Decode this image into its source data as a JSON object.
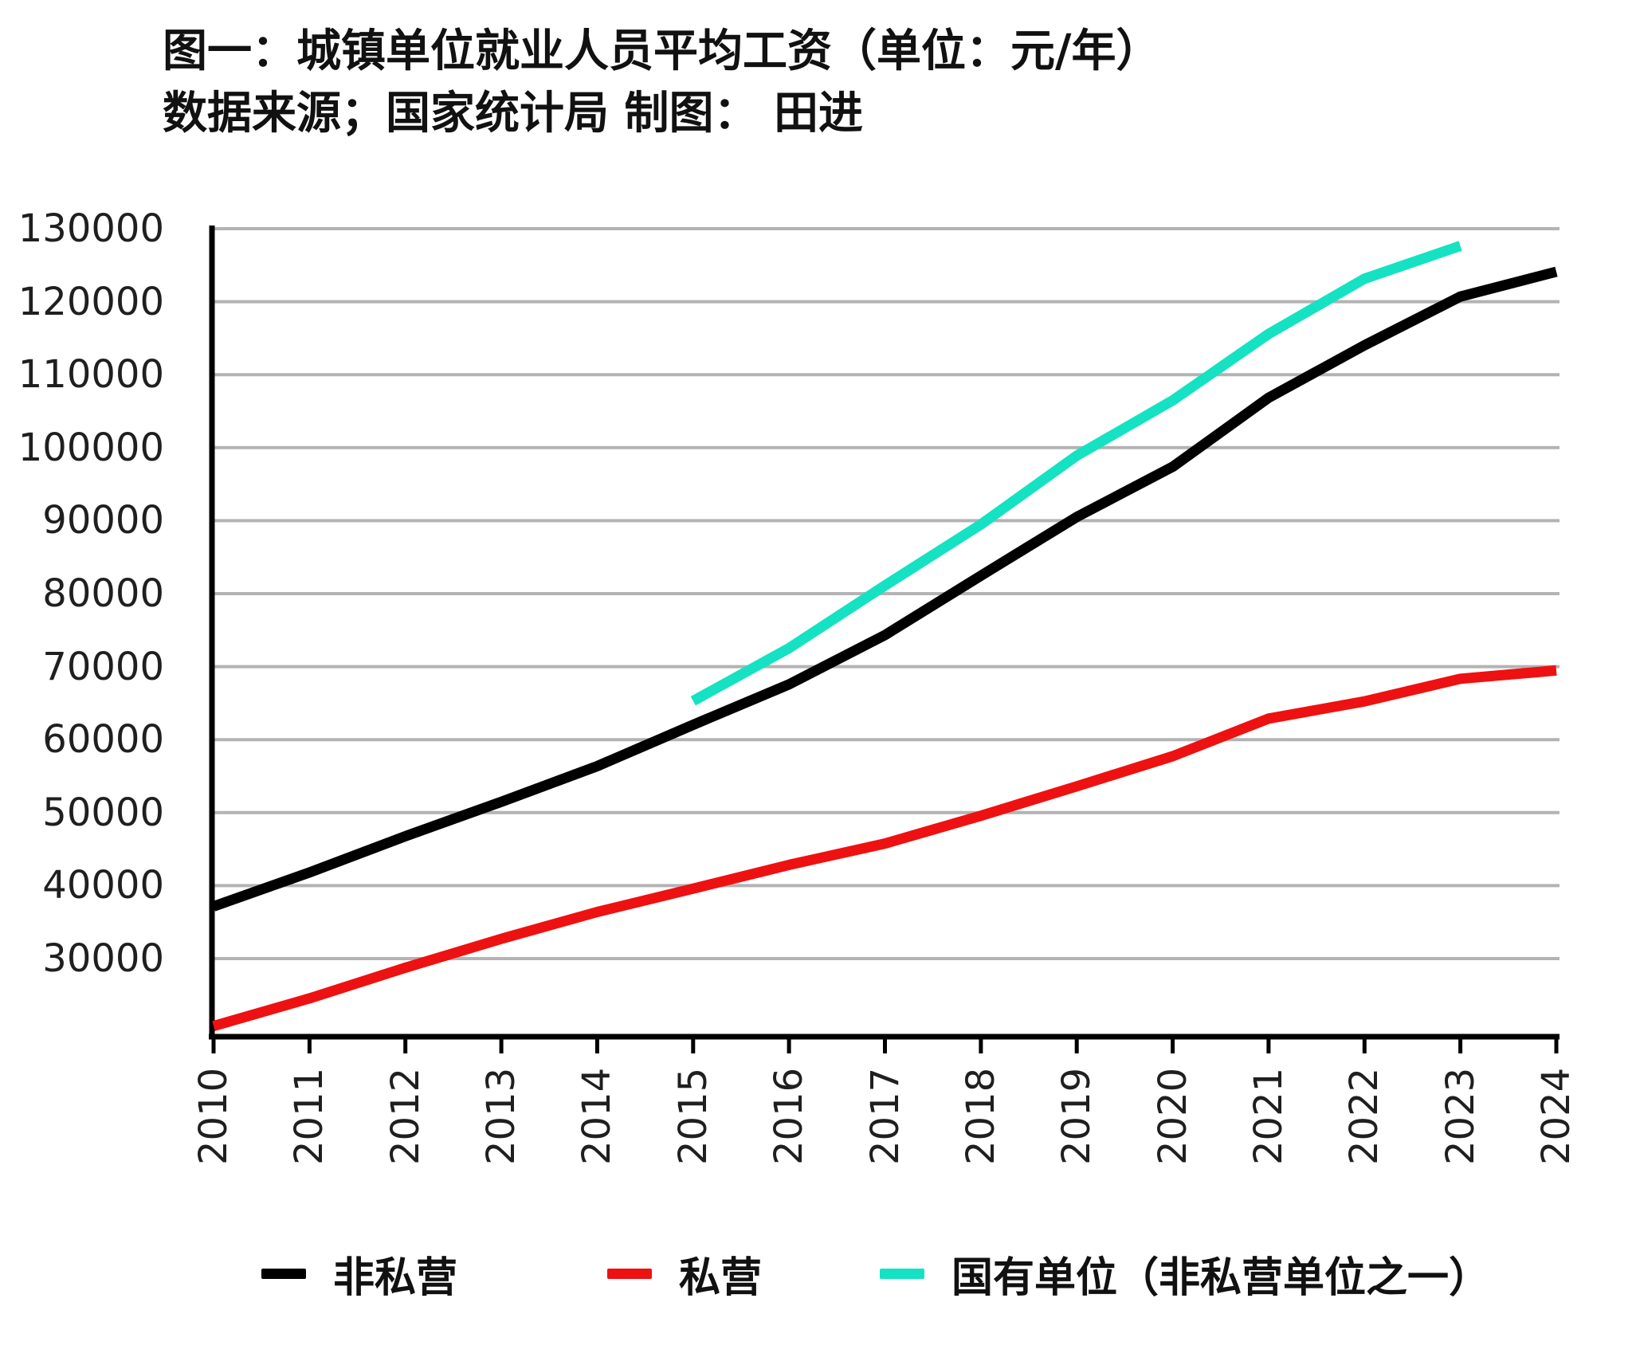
{
  "header": {
    "title_line1": "图一：城镇单位就业人员平均工资（单位：元/年）",
    "title_line2": "数据来源；国家统计局 制图： 田进"
  },
  "chart_data": {
    "type": "line",
    "title": "图一：城镇单位就业人员平均工资（单位：元/年）",
    "source_note": "数据来源；国家统计局 制图： 田进",
    "x": [
      2010,
      2011,
      2012,
      2013,
      2014,
      2015,
      2016,
      2017,
      2018,
      2019,
      2020,
      2021,
      2022,
      2023,
      2024
    ],
    "xlabel": "",
    "ylabel": "",
    "ylim": [
      19300,
      130000
    ],
    "yticks": [
      30000,
      40000,
      50000,
      60000,
      70000,
      80000,
      90000,
      100000,
      110000,
      120000,
      130000
    ],
    "grid": "horizontal",
    "grid_color": "#b3b3b3",
    "axis_color": "#000000",
    "legend_position": "bottom",
    "series": [
      {
        "name": "非私营",
        "color": "#000000",
        "start_year": 2010,
        "values": [
          37147,
          41799,
          46769,
          51483,
          56360,
          62029,
          67569,
          74318,
          82461,
          90501,
          97379,
          106837,
          114029,
          120698,
          124110
        ]
      },
      {
        "name": "私营",
        "color": "#ee1111",
        "start_year": 2010,
        "values": [
          20759,
          24556,
          28752,
          32706,
          36390,
          39589,
          42833,
          45761,
          49575,
          53604,
          57727,
          62884,
          65237,
          68340,
          69476
        ]
      },
      {
        "name": "国有单位（非私营单位之一）",
        "color": "#15e2c2",
        "start_year": 2015,
        "values": [
          65296,
          72538,
          81114,
          89474,
          98899,
          106474,
          115583,
          123142,
          127657
        ]
      }
    ]
  }
}
